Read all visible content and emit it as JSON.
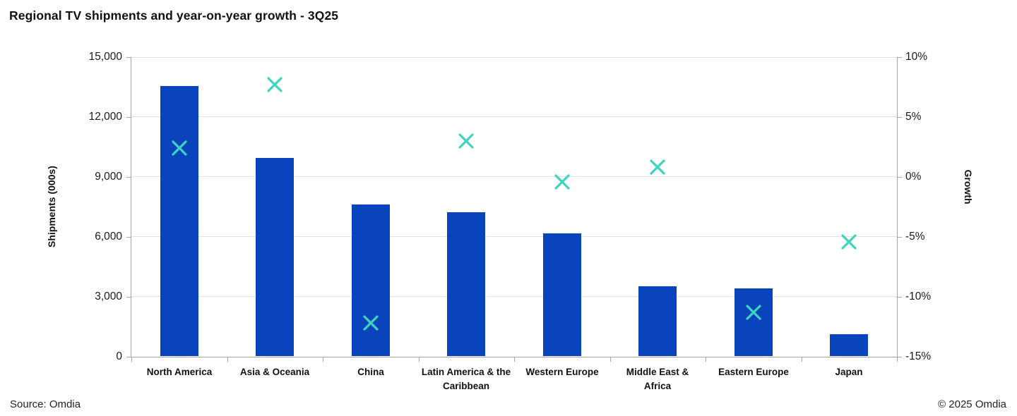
{
  "header": {
    "title": "Regional TV shipments and year-on-year growth - 3Q25"
  },
  "footer": {
    "source": "Source: Omdia",
    "copyright": "© 2025 Omdia"
  },
  "colors": {
    "bar": "#0a44bc",
    "marker": "#3dd5c0",
    "gridline": "#e3e3e3",
    "axis_line": "#a6a6a6",
    "text": "#1a1a1a"
  },
  "chart_data": {
    "type": "bar",
    "subtype": "combo-bar-with-scatter-x-markers",
    "title": "Regional TV shipments and year-on-year growth - 3Q25",
    "categories": [
      "North America",
      "Asia & Oceania",
      "China",
      "Latin America & the\nCaribbean",
      "Western Europe",
      "Middle East &\nAfrica",
      "Eastern Europe",
      "Japan"
    ],
    "series": [
      {
        "name": "Shipments (000s)",
        "type": "bar",
        "axis": "left",
        "values": [
          13500,
          9900,
          7600,
          7200,
          6150,
          3500,
          3400,
          1100
        ]
      },
      {
        "name": "Growth",
        "type": "scatter",
        "marker": "x",
        "axis": "right",
        "values_pct": [
          2.4,
          7.7,
          -12.2,
          3.0,
          -0.4,
          0.8,
          -11.3,
          -5.4
        ]
      }
    ],
    "left_axis": {
      "label": "Shipments (000s)",
      "min": 0,
      "max": 15000,
      "tick_step": 3000,
      "tick_labels": [
        "0",
        "3,000",
        "6,000",
        "9,000",
        "12,000",
        "15,000"
      ]
    },
    "right_axis": {
      "label": "Growth",
      "min": -15,
      "max": 10,
      "tick_step": 5,
      "tick_labels": [
        "-15%",
        "-10%",
        "-5%",
        "0%",
        "5%",
        "10%"
      ]
    },
    "grid": true,
    "legend": false
  }
}
